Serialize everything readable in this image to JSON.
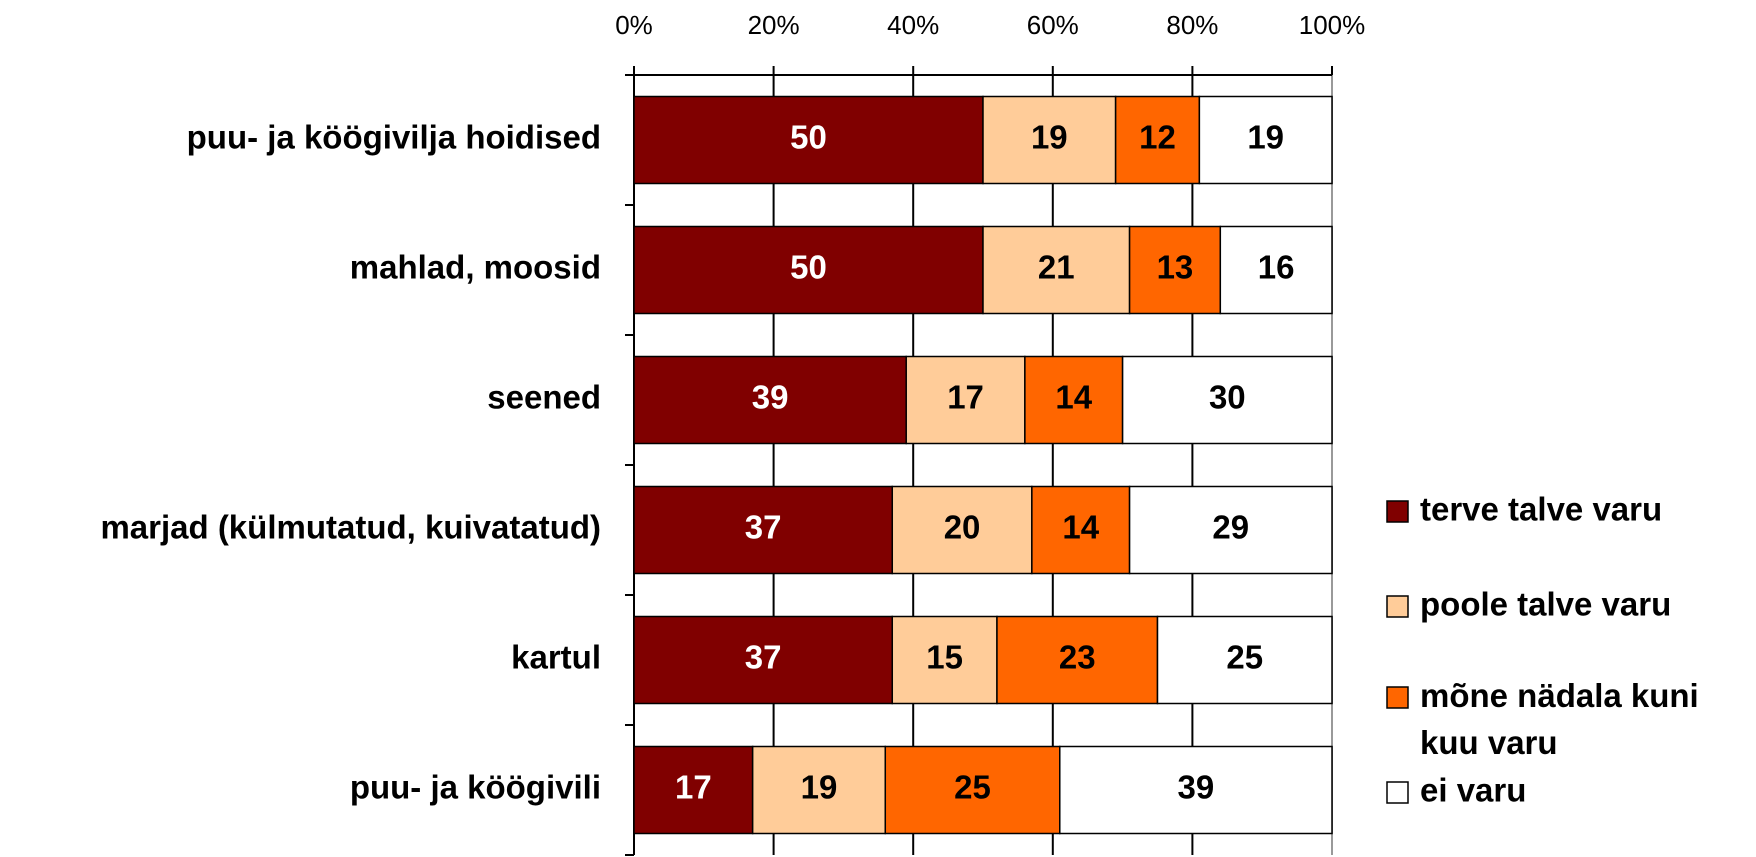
{
  "chart_data": {
    "type": "stacked_barh",
    "categories": [
      "puu- ja köögivilja hoidised",
      "mahlad, moosid",
      "seened",
      "marjad (külmutatud, kuivatatud)",
      "kartul",
      "puu- ja köögivili"
    ],
    "series": [
      {
        "name": "terve talve varu",
        "color": "#800000",
        "values": [
          50,
          50,
          39,
          37,
          37,
          17
        ]
      },
      {
        "name": "poole talve varu",
        "color": "#FFCC99",
        "values": [
          19,
          21,
          17,
          20,
          15,
          19
        ]
      },
      {
        "name": "mõne nädala kuni kuu varu",
        "color": "#FF6600",
        "values": [
          12,
          13,
          14,
          14,
          23,
          25
        ]
      },
      {
        "name": "ei varu",
        "color": "#FFFFFF",
        "values": [
          19,
          16,
          30,
          29,
          25,
          39
        ]
      }
    ],
    "xlim": [
      0,
      100
    ],
    "xticks": [
      {
        "value": 0,
        "label": "0%"
      },
      {
        "value": 20,
        "label": "20%"
      },
      {
        "value": 40,
        "label": "40%"
      },
      {
        "value": 60,
        "label": "60%"
      },
      {
        "value": 80,
        "label": "80%"
      },
      {
        "value": 100,
        "label": "100%"
      }
    ],
    "grid": true,
    "legend": "right"
  }
}
